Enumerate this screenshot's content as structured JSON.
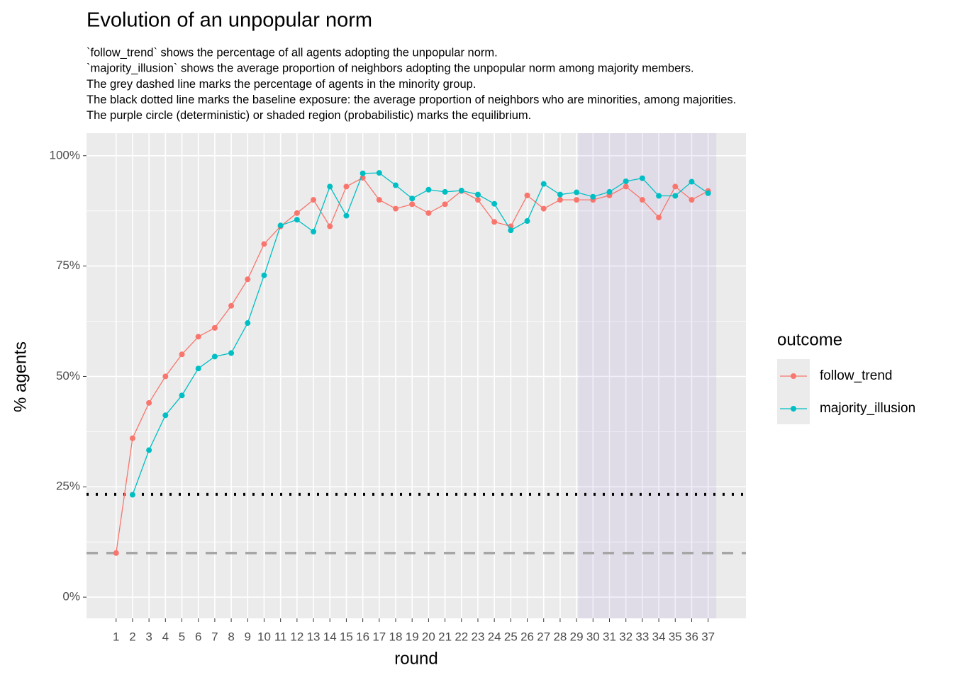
{
  "chart_data": {
    "type": "line",
    "title": "Evolution of an unpopular norm",
    "subtitle": [
      "`follow_trend` shows the percentage of all agents adopting the unpopular norm.",
      "`majority_illusion` shows the average proportion of neighbors adopting the unpopular norm among majority members.",
      "The grey dashed line marks the percentage of agents in the minority group.",
      "The black dotted line marks the baseline exposure: the average proportion of neighbors who are minorities, among majorities.",
      "The purple circle (deterministic) or shaded region (probabilistic) marks the equilibrium."
    ],
    "x_label": "round",
    "y_label": "% agents",
    "legend_title": "outcome",
    "legend_position": "right",
    "grid": true,
    "x": [
      1,
      2,
      3,
      4,
      5,
      6,
      7,
      8,
      9,
      10,
      11,
      12,
      13,
      14,
      15,
      16,
      17,
      18,
      19,
      20,
      21,
      22,
      23,
      24,
      25,
      26,
      27,
      28,
      29,
      30,
      31,
      32,
      33,
      34,
      35,
      36,
      37
    ],
    "xlim": [
      -0.8,
      39.3
    ],
    "xticks": [
      1,
      2,
      3,
      4,
      5,
      6,
      7,
      8,
      9,
      10,
      11,
      12,
      13,
      14,
      15,
      16,
      17,
      18,
      19,
      20,
      21,
      22,
      23,
      24,
      25,
      26,
      27,
      28,
      29,
      30,
      31,
      32,
      33,
      34,
      35,
      36,
      37
    ],
    "ylim": [
      -4.8,
      105.1
    ],
    "yticks": [
      {
        "value": 0,
        "label": "0%"
      },
      {
        "value": 25,
        "label": "25%"
      },
      {
        "value": 50,
        "label": "50%"
      },
      {
        "value": 75,
        "label": "75%"
      },
      {
        "value": 100,
        "label": "100%"
      }
    ],
    "yminorticks": [
      12.5,
      37.5,
      62.5,
      87.5
    ],
    "series": [
      {
        "name": "follow_trend",
        "color": "#f8766d",
        "values": [
          10,
          36,
          44,
          50,
          55,
          59,
          61,
          66,
          72,
          80,
          84,
          87,
          90,
          84,
          93,
          95,
          90,
          88,
          89,
          87,
          89,
          92,
          90,
          85,
          84,
          91,
          88,
          90,
          90,
          90,
          91,
          93,
          90,
          86,
          93,
          90,
          92
        ]
      },
      {
        "name": "majority_illusion",
        "color": "#00bfc4",
        "values": [
          null,
          23.2,
          33.3,
          41.2,
          45.7,
          51.8,
          54.5,
          55.3,
          62.1,
          72.9,
          84.2,
          85.5,
          82.8,
          93,
          86.4,
          96,
          96.1,
          93.3,
          90.3,
          92.3,
          91.8,
          92.1,
          91.2,
          89.1,
          83.1,
          85.2,
          93.6,
          91.2,
          91.7,
          90.7,
          91.8,
          94.2,
          94.9,
          90.9,
          90.9,
          94.1,
          91.5
        ]
      }
    ],
    "hlines": [
      {
        "value": 23.3,
        "style": "dotted",
        "color": "#000000"
      },
      {
        "value": 10,
        "style": "dashed",
        "color": "#a6a6a6"
      }
    ],
    "shaded_region": {
      "x": [
        29.1,
        37.5
      ],
      "color": "#9a7fd1",
      "opacity": 0.13
    }
  }
}
